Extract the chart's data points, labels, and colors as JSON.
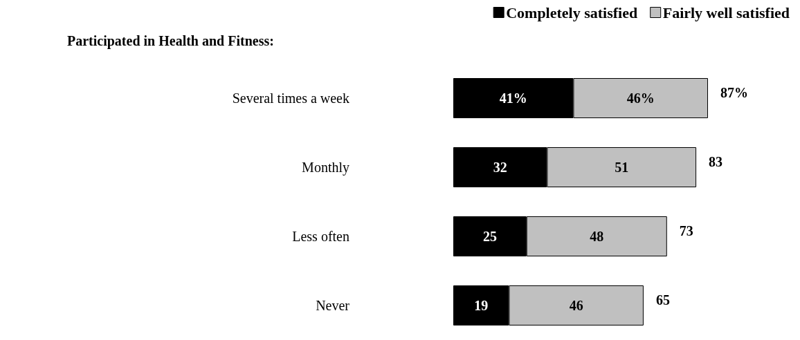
{
  "chart_data": {
    "type": "bar",
    "orientation": "horizontal",
    "stacked": true,
    "title": "Participated in Health and Fitness:",
    "categories": [
      "Several times a week",
      "Monthly",
      "Less often",
      "Never"
    ],
    "series": [
      {
        "name": "Completely satisfied",
        "color": "#000000",
        "values": [
          41,
          32,
          25,
          19
        ],
        "value_labels": [
          "41%",
          "32",
          "25",
          "19"
        ]
      },
      {
        "name": "Fairly well satisfied",
        "color": "#c0c0c0",
        "values": [
          46,
          51,
          48,
          46
        ],
        "value_labels": [
          "46%",
          "51",
          "48",
          "46"
        ]
      }
    ],
    "totals": [
      "87%",
      "83",
      "73",
      "65"
    ],
    "legend": "top right",
    "tick_labels": "y"
  }
}
